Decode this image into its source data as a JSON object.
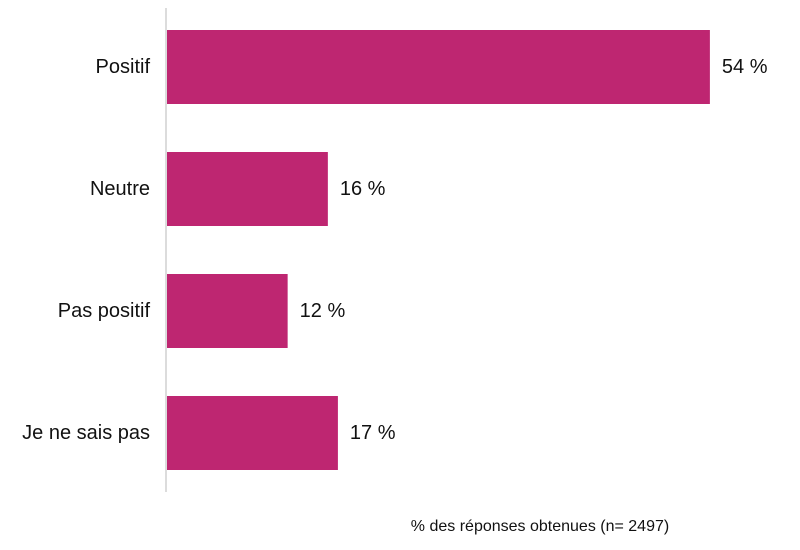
{
  "chart_data": {
    "type": "bar",
    "orientation": "horizontal",
    "categories": [
      "Positif",
      "Neutre",
      "Pas positif",
      "Je ne sais pas"
    ],
    "values": [
      54,
      16,
      12,
      17
    ],
    "value_labels": [
      "54 %",
      "16 %",
      "12 %",
      "17 %"
    ],
    "xlabel": "% des réponses obtenues (n= 2497)",
    "ylabel": "",
    "title": "",
    "xlim": [
      0,
      56
    ],
    "grid": false,
    "legend": "none",
    "bar_color": "#BE2671",
    "axis_color": "#D0D0D0"
  }
}
